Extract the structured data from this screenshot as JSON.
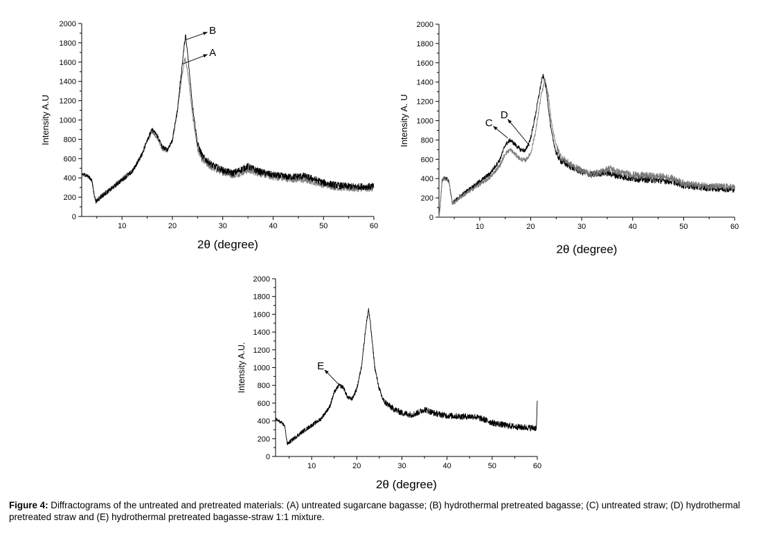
{
  "caption": {
    "label": "Figure 4:",
    "text": " Diffractograms of the untreated and pretreated materials: (A) untreated sugarcane bagasse; (B) hydrothermal pretreated bagasse; (C) untreated straw; (D) hydrothermal pretreated straw and (E) hydrothermal pretreated bagasse-straw 1:1 mixture."
  },
  "colors": {
    "black_series": "#000000",
    "gray_series": "#7a7a7a"
  },
  "chart_data": [
    {
      "type": "line",
      "title": "",
      "xlabel": "2θ (degree)",
      "ylabel": "Intensity A.U",
      "xlim": [
        2,
        60
      ],
      "ylim": [
        0,
        2000
      ],
      "xticks": [
        10,
        20,
        30,
        40,
        50,
        60
      ],
      "yticks": [
        0,
        200,
        400,
        600,
        800,
        1000,
        1200,
        1400,
        1600,
        1800,
        2000
      ],
      "grid": false,
      "annotations": [
        {
          "text": "B",
          "target_x": 22.6,
          "target_y": 1830,
          "label_x": 28.0,
          "label_y": 1930
        },
        {
          "text": "A",
          "target_x": 22.0,
          "target_y": 1580,
          "label_x": 28.0,
          "label_y": 1700
        }
      ],
      "series": [
        {
          "name": "A",
          "color": "gray",
          "x": [
            2,
            3,
            4,
            4.4,
            4.8,
            6,
            8,
            10,
            12,
            14,
            15,
            16,
            17,
            18,
            19,
            20,
            21,
            22,
            22.5,
            23,
            24,
            25,
            26,
            28,
            30,
            32,
            33,
            35,
            37,
            40,
            43,
            46,
            48,
            50,
            53,
            56,
            60
          ],
          "y": [
            430,
            420,
            370,
            250,
            160,
            220,
            300,
            390,
            470,
            640,
            780,
            880,
            820,
            700,
            680,
            790,
            1100,
            1500,
            1640,
            1520,
            1050,
            700,
            580,
            500,
            460,
            430,
            440,
            480,
            450,
            410,
            390,
            380,
            360,
            330,
            300,
            290,
            290
          ]
        },
        {
          "name": "B",
          "color": "black",
          "x": [
            2,
            3,
            4,
            4.4,
            4.8,
            6,
            8,
            10,
            12,
            14,
            15,
            16,
            17,
            18,
            19,
            20,
            21,
            22,
            22.6,
            23,
            24,
            25,
            26,
            28,
            30,
            32,
            33,
            35,
            37,
            40,
            43,
            46,
            48,
            50,
            53,
            56,
            60
          ],
          "y": [
            440,
            430,
            380,
            250,
            150,
            210,
            290,
            380,
            460,
            650,
            800,
            900,
            840,
            720,
            690,
            790,
            1100,
            1600,
            1880,
            1700,
            1150,
            750,
            620,
            530,
            480,
            450,
            470,
            520,
            470,
            430,
            410,
            420,
            390,
            350,
            320,
            310,
            310
          ]
        }
      ]
    },
    {
      "type": "line",
      "title": "",
      "xlabel": "2θ (degree)",
      "ylabel": "Intensity A. U",
      "xlim": [
        2,
        60
      ],
      "ylim": [
        0,
        2000
      ],
      "xticks": [
        10,
        20,
        30,
        40,
        50,
        60
      ],
      "yticks": [
        0,
        200,
        400,
        600,
        800,
        1000,
        1200,
        1400,
        1600,
        1800,
        2000
      ],
      "grid": false,
      "annotations": [
        {
          "text": "C",
          "target_x": 15.5,
          "target_y": 820,
          "label_x": 11.8,
          "label_y": 980
        },
        {
          "text": "D",
          "target_x": 19.8,
          "target_y": 740,
          "label_x": 14.8,
          "label_y": 1060
        }
      ],
      "series": [
        {
          "name": "C",
          "color": "black",
          "x": [
            2,
            2.3,
            2.6,
            3,
            3.5,
            4,
            4.3,
            4.6,
            5,
            6,
            8,
            10,
            12,
            14,
            15,
            16,
            17,
            18,
            19,
            20,
            21,
            22,
            22.4,
            23,
            24,
            25,
            26,
            28,
            30,
            32,
            34,
            35,
            37,
            40,
            43,
            46,
            48,
            50,
            53,
            56,
            60
          ],
          "y": [
            0,
            150,
            380,
            410,
            400,
            370,
            250,
            150,
            160,
            210,
            290,
            370,
            450,
            600,
            750,
            800,
            750,
            700,
            690,
            820,
            1080,
            1380,
            1470,
            1350,
            900,
            660,
            580,
            520,
            470,
            440,
            460,
            460,
            430,
            400,
            390,
            380,
            370,
            330,
            310,
            300,
            290
          ]
        },
        {
          "name": "D",
          "color": "gray",
          "x": [
            2,
            2.3,
            2.6,
            3,
            3.5,
            4,
            4.3,
            4.6,
            5,
            6,
            8,
            10,
            12,
            14,
            15,
            16,
            17,
            18,
            19,
            20,
            21,
            22,
            22.8,
            23.5,
            24,
            25,
            26,
            28,
            30,
            32,
            34,
            35.5,
            37,
            40,
            43,
            46,
            48,
            50,
            53,
            56,
            60
          ],
          "y": [
            0,
            150,
            380,
            400,
            390,
            360,
            250,
            150,
            150,
            200,
            270,
            340,
            410,
            540,
            660,
            700,
            650,
            600,
            590,
            660,
            900,
            1250,
            1420,
            1250,
            1000,
            740,
            620,
            540,
            480,
            450,
            470,
            510,
            470,
            440,
            430,
            420,
            400,
            350,
            330,
            320,
            310
          ]
        }
      ]
    },
    {
      "type": "line",
      "title": "",
      "xlabel": "2θ (degree)",
      "ylabel": "Intensity A.U.",
      "xlim": [
        2,
        60
      ],
      "ylim": [
        0,
        2000
      ],
      "xticks": [
        10,
        20,
        30,
        40,
        50,
        60
      ],
      "yticks": [
        0,
        200,
        400,
        600,
        800,
        1000,
        1200,
        1400,
        1600,
        1800,
        2000
      ],
      "grid": false,
      "annotations": [
        {
          "text": "E",
          "target_x": 16.0,
          "target_y": 810,
          "label_x": 12.0,
          "label_y": 1020
        }
      ],
      "series": [
        {
          "name": "E",
          "color": "black",
          "x": [
            2,
            3,
            4,
            4.3,
            4.6,
            6,
            8,
            10,
            12,
            14,
            15,
            16,
            17,
            18,
            19,
            20,
            21,
            22,
            22.6,
            23,
            24,
            25,
            26,
            28,
            30,
            32,
            33,
            35,
            37,
            39.8,
            40,
            43,
            46,
            48,
            50,
            53,
            56,
            59.8,
            60
          ],
          "y": [
            420,
            390,
            350,
            250,
            140,
            200,
            280,
            350,
            420,
            560,
            720,
            800,
            780,
            660,
            650,
            760,
            1000,
            1450,
            1660,
            1500,
            1000,
            750,
            620,
            540,
            490,
            470,
            480,
            530,
            490,
            460,
            460,
            450,
            450,
            420,
            380,
            350,
            330,
            320,
            600
          ]
        }
      ]
    }
  ]
}
